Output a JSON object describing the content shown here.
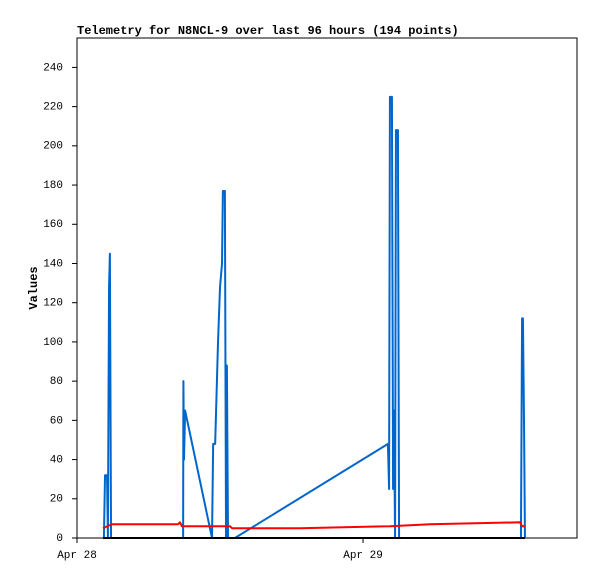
{
  "chart_data": {
    "type": "line",
    "title": "Telemetry for N8NCL-9 over last 96 hours (194 points)",
    "y_label": "Values",
    "xlim": [
      0,
      1.748
    ],
    "xticks": [
      {
        "value": 0,
        "label": "Apr 28"
      },
      {
        "value": 1,
        "label": "Apr 29"
      }
    ],
    "ylim": [
      0,
      255
    ],
    "yticks": [
      0,
      20,
      40,
      60,
      80,
      100,
      120,
      140,
      160,
      180,
      200,
      220,
      240
    ],
    "series": [
      {
        "color": "#0066cc",
        "x": [
          0.094,
          0.098,
          0.105,
          0.108,
          0.112,
          0.115,
          0.119,
          0.371,
          0.372,
          0.374,
          0.378,
          0.472,
          0.476,
          0.483,
          0.493,
          0.5,
          0.507,
          0.51,
          0.517,
          0.521,
          0.524,
          0.528,
          0.552,
          1.087,
          1.091,
          1.094,
          1.101,
          1.105,
          1.108,
          1.112,
          1.115,
          1.122,
          1.126,
          1.552,
          1.556,
          1.559,
          1.563,
          1.566
        ],
        "values": [
          0,
          32,
          32,
          0,
          128,
          145,
          0,
          0,
          80,
          40,
          65,
          0,
          48,
          48,
          100,
          128,
          140,
          177,
          177,
          0,
          88,
          0,
          0,
          48,
          25,
          225,
          225,
          25,
          65,
          0,
          208,
          208,
          0,
          0,
          112,
          112,
          56,
          0
        ]
      },
      {
        "color": "#ff0000",
        "x": [
          0.091,
          0.122,
          0.353,
          0.36,
          0.367,
          0.535,
          0.542,
          0.78,
          1.094,
          1.234,
          1.549,
          1.556,
          1.566
        ],
        "values": [
          5,
          7,
          7,
          8,
          6,
          6,
          5,
          5,
          6,
          7,
          8,
          6,
          6
        ]
      },
      {
        "color": "#000000",
        "x": [
          0.091,
          1.566
        ],
        "values": [
          0,
          0
        ]
      }
    ]
  }
}
